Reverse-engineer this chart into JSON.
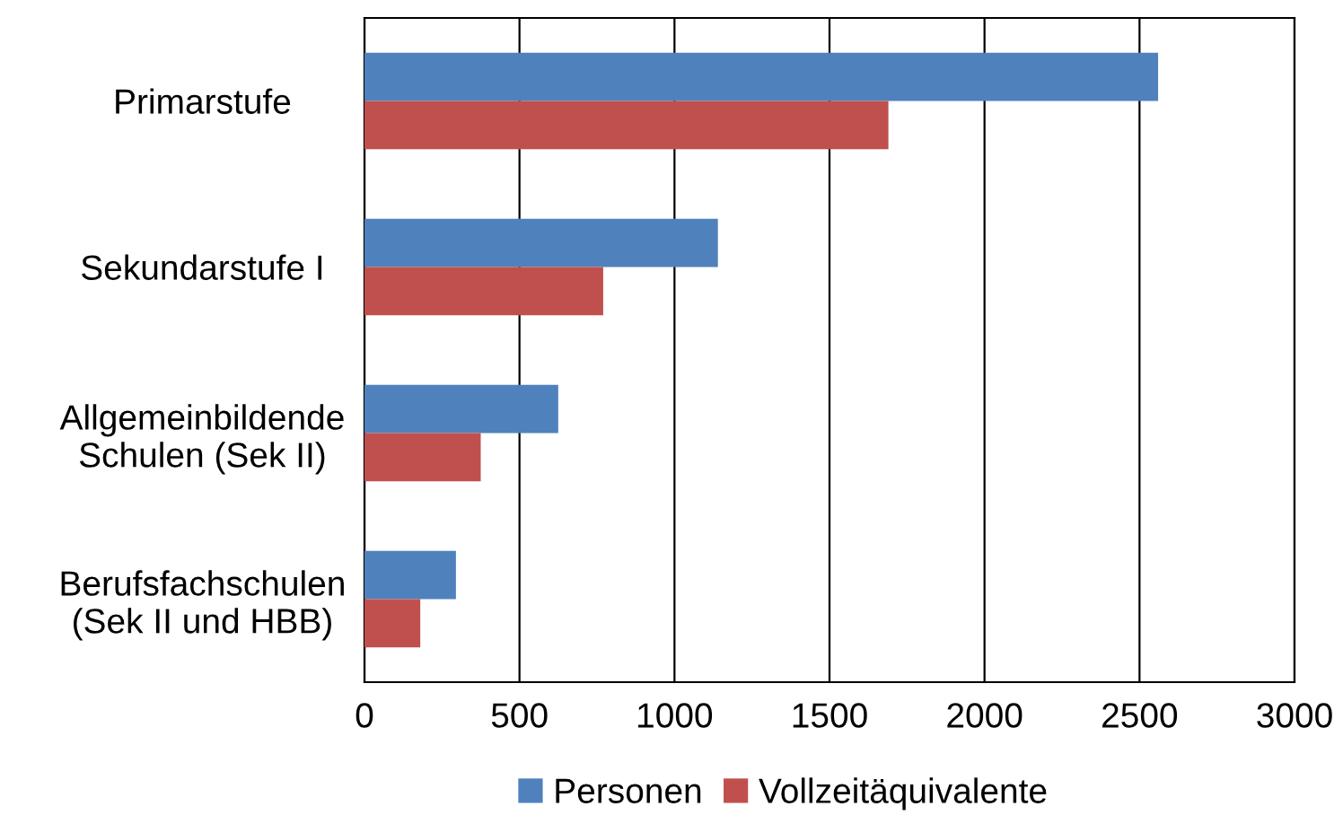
{
  "chart_data": {
    "type": "bar",
    "orientation": "horizontal",
    "categories": [
      "Primarstufe",
      "Sekundarstufe I",
      "Allgemeinbildende\nSchulen (Sek II)",
      "Berufsfachschulen\n(Sek II und HBB)"
    ],
    "series": [
      {
        "name": "Personen",
        "color": "#4f81bd",
        "values": [
          2560,
          1140,
          625,
          295
        ]
      },
      {
        "name": "Vollzeitäquivalente",
        "color": "#c0504d",
        "values": [
          1690,
          770,
          375,
          180
        ]
      }
    ],
    "xlim": [
      0,
      3000
    ],
    "xticks": [
      0,
      500,
      1000,
      1500,
      2000,
      2500,
      3000
    ],
    "grid": "x",
    "legend": "bottom"
  }
}
